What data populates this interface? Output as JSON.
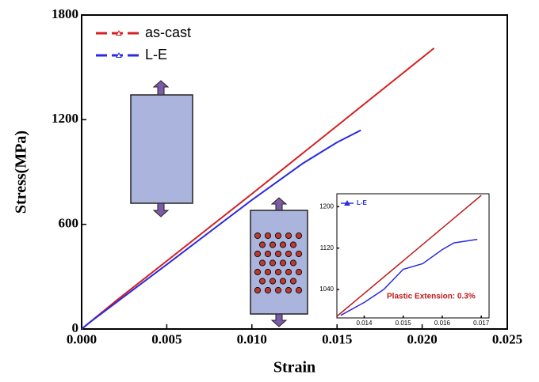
{
  "chart_data": [
    {
      "type": "line",
      "xlabel": "Strain",
      "ylabel": "Stress(MPa)",
      "xlim": [
        0,
        0.025
      ],
      "ylim": [
        0,
        1800
      ],
      "xticks": [
        {
          "value": 0,
          "label": "0.000"
        },
        0.005,
        {
          "value": 0.01,
          "label": "0.010"
        },
        0.015,
        {
          "value": 0.02,
          "label": "0.020"
        },
        0.025
      ],
      "yticks": [
        0,
        600,
        1200,
        1800
      ],
      "legend": "upper left",
      "series": [
        {
          "name": "as-cast",
          "color": "#d42020",
          "x": [
            0,
            0.0005,
            0.002,
            0.005,
            0.01,
            0.015,
            0.0207
          ],
          "values": [
            0,
            40,
            160,
            390,
            775,
            1165,
            1610
          ]
        },
        {
          "name": "L-E",
          "color": "#2a2ae0",
          "x": [
            0,
            0.0005,
            0.002,
            0.005,
            0.01,
            0.013,
            0.015,
            0.0164
          ],
          "values": [
            0,
            40,
            150,
            370,
            740,
            950,
            1070,
            1140
          ]
        }
      ]
    },
    {
      "type": "line",
      "xlim": [
        0.0133,
        0.0172
      ],
      "ylim": [
        985,
        1225
      ],
      "xticks": [
        0.014,
        0.015,
        0.016,
        0.017
      ],
      "yticks": [
        1040,
        1120,
        1200
      ],
      "legend": "upper left",
      "annotation": "Plastic Extension: 0.3%",
      "series": [
        {
          "color": "#c01818",
          "x": [
            0.0133,
            0.017
          ],
          "values": [
            988,
            1222
          ]
        },
        {
          "name": "L-E",
          "color": "#2a2ae0",
          "x": [
            0.0134,
            0.014,
            0.0145,
            0.015,
            0.0155,
            0.016,
            0.0163,
            0.0169
          ],
          "values": [
            990,
            1015,
            1040,
            1079,
            1090,
            1117,
            1130,
            1137
          ]
        }
      ]
    }
  ]
}
